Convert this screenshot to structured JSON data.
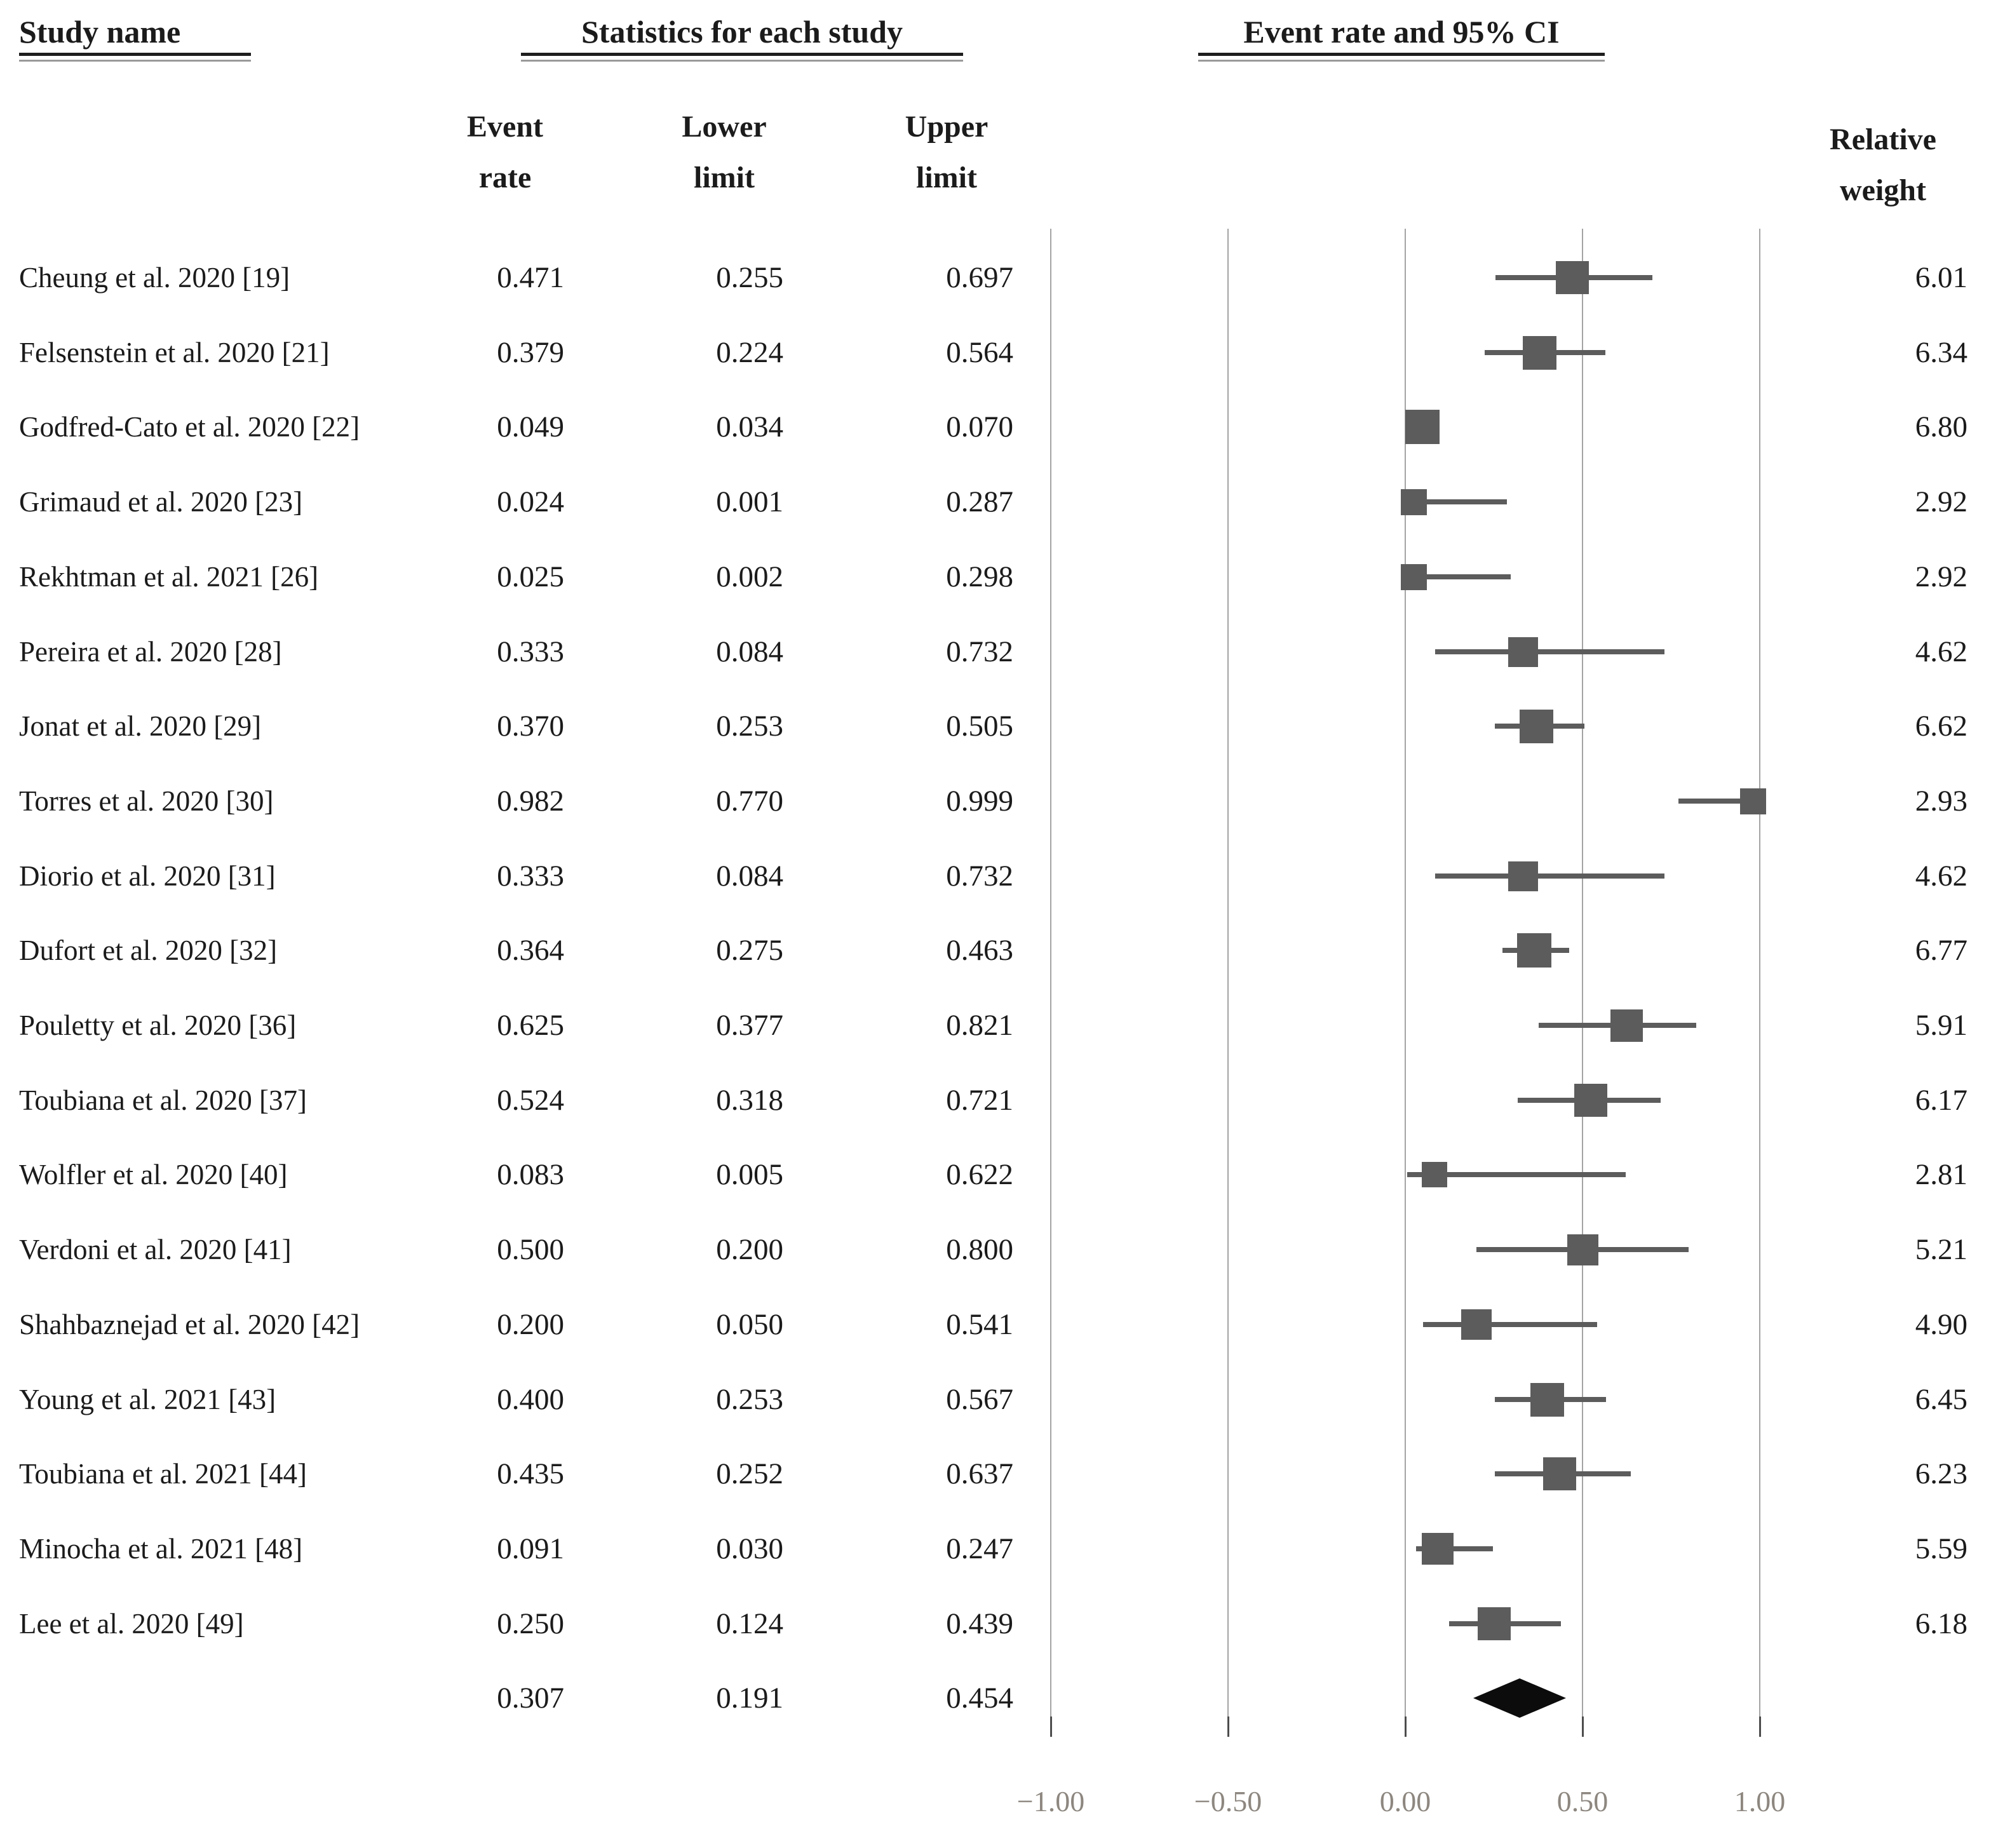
{
  "figure": {
    "headers": {
      "study_name": "Study name",
      "statistics": "Statistics for each study",
      "event_rate_ci": "Event rate and 95% CI",
      "columns": {
        "event": [
          "Event",
          "rate"
        ],
        "lower": [
          "Lower",
          "limit"
        ],
        "upper": [
          "Upper",
          "limit"
        ],
        "weight": [
          "Relative",
          "weight"
        ]
      }
    }
  },
  "chart_data": {
    "type": "forest",
    "title": "Event rate and 95% CI",
    "columns": [
      "Study name",
      "Event rate",
      "Lower limit",
      "Upper limit",
      "Relative weight"
    ],
    "x_axis": {
      "min": -1.0,
      "max": 1.0,
      "ticks": [
        -1.0,
        -0.5,
        0.0,
        0.5,
        1.0
      ],
      "tick_labels": [
        "−1.00",
        "−0.50",
        "0.00",
        "0.50",
        "1.00"
      ]
    },
    "grid": "vertical-gridlines-on",
    "legend": null,
    "marker_color": "#5c5c5c",
    "summary_color": "#0c0c0c",
    "studies": [
      {
        "name": "Cheung et al. 2020 [19]",
        "event_rate": 0.471,
        "lower_limit": 0.255,
        "upper_limit": 0.697,
        "relative_weight": 6.01
      },
      {
        "name": "Felsenstein et al. 2020 [21]",
        "event_rate": 0.379,
        "lower_limit": 0.224,
        "upper_limit": 0.564,
        "relative_weight": 6.34
      },
      {
        "name": "Godfred-Cato et al. 2020 [22]",
        "event_rate": 0.049,
        "lower_limit": 0.034,
        "upper_limit": 0.07,
        "relative_weight": 6.8
      },
      {
        "name": "Grimaud et al. 2020 [23]",
        "event_rate": 0.024,
        "lower_limit": 0.001,
        "upper_limit": 0.287,
        "relative_weight": 2.92
      },
      {
        "name": "Rekhtman et al. 2021 [26]",
        "event_rate": 0.025,
        "lower_limit": 0.002,
        "upper_limit": 0.298,
        "relative_weight": 2.92
      },
      {
        "name": "Pereira et al. 2020 [28]",
        "event_rate": 0.333,
        "lower_limit": 0.084,
        "upper_limit": 0.732,
        "relative_weight": 4.62
      },
      {
        "name": "Jonat et al. 2020 [29]",
        "event_rate": 0.37,
        "lower_limit": 0.253,
        "upper_limit": 0.505,
        "relative_weight": 6.62
      },
      {
        "name": "Torres et al. 2020 [30]",
        "event_rate": 0.982,
        "lower_limit": 0.77,
        "upper_limit": 0.999,
        "relative_weight": 2.93
      },
      {
        "name": "Diorio et al. 2020 [31]",
        "event_rate": 0.333,
        "lower_limit": 0.084,
        "upper_limit": 0.732,
        "relative_weight": 4.62
      },
      {
        "name": "Dufort et al. 2020 [32]",
        "event_rate": 0.364,
        "lower_limit": 0.275,
        "upper_limit": 0.463,
        "relative_weight": 6.77
      },
      {
        "name": "Pouletty et al. 2020 [36]",
        "event_rate": 0.625,
        "lower_limit": 0.377,
        "upper_limit": 0.821,
        "relative_weight": 5.91
      },
      {
        "name": "Toubiana et al. 2020 [37]",
        "event_rate": 0.524,
        "lower_limit": 0.318,
        "upper_limit": 0.721,
        "relative_weight": 6.17
      },
      {
        "name": "Wolfler et al. 2020 [40]",
        "event_rate": 0.083,
        "lower_limit": 0.005,
        "upper_limit": 0.622,
        "relative_weight": 2.81
      },
      {
        "name": "Verdoni et al. 2020 [41]",
        "event_rate": 0.5,
        "lower_limit": 0.2,
        "upper_limit": 0.8,
        "relative_weight": 5.21
      },
      {
        "name": "Shahbaznejad et al. 2020 [42]",
        "event_rate": 0.2,
        "lower_limit": 0.05,
        "upper_limit": 0.541,
        "relative_weight": 4.9
      },
      {
        "name": "Young et al. 2021 [43]",
        "event_rate": 0.4,
        "lower_limit": 0.253,
        "upper_limit": 0.567,
        "relative_weight": 6.45
      },
      {
        "name": "Toubiana et al. 2021 [44]",
        "event_rate": 0.435,
        "lower_limit": 0.252,
        "upper_limit": 0.637,
        "relative_weight": 6.23
      },
      {
        "name": "Minocha et al. 2021 [48]",
        "event_rate": 0.091,
        "lower_limit": 0.03,
        "upper_limit": 0.247,
        "relative_weight": 5.59
      },
      {
        "name": "Lee et al. 2020 [49]",
        "event_rate": 0.25,
        "lower_limit": 0.124,
        "upper_limit": 0.439,
        "relative_weight": 6.18
      }
    ],
    "summary": {
      "event_rate": 0.307,
      "lower_limit": 0.191,
      "upper_limit": 0.454,
      "marker": "diamond"
    }
  }
}
